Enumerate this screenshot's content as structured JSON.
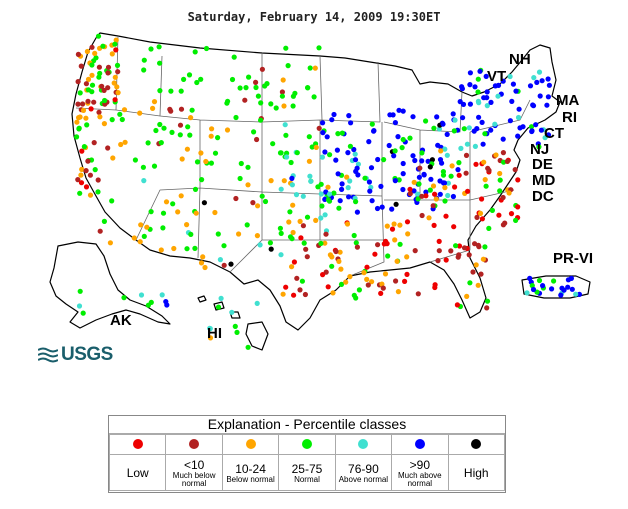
{
  "title": "Saturday, February 14, 2009 19:30ET",
  "logo": {
    "text": "USGS"
  },
  "state_labels": [
    "NH",
    "VT",
    "MA",
    "RI",
    "CT",
    "NJ",
    "DE",
    "MD",
    "DC",
    "PR-VI",
    "AK",
    "HI"
  ],
  "legend": {
    "title": "Explanation - Percentile classes",
    "classes": [
      {
        "color": "#ee0000",
        "label": "Low",
        "sub": ""
      },
      {
        "color": "#b22222",
        "label": "<10",
        "sub": "Much below normal"
      },
      {
        "color": "#ffa500",
        "label": "10-24",
        "sub": "Below normal"
      },
      {
        "color": "#00ee00",
        "label": "25-75",
        "sub": "Normal"
      },
      {
        "color": "#40e0d0",
        "label": "76-90",
        "sub": "Above normal"
      },
      {
        "color": "#0000ff",
        "label": ">90",
        "sub": "Much above normal"
      },
      {
        "color": "#000000",
        "label": "High",
        "sub": ""
      }
    ]
  }
}
